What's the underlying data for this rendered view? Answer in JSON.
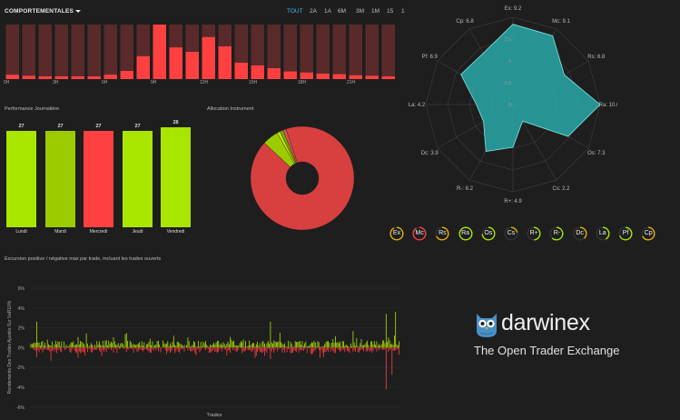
{
  "header": {
    "title": "COMPORTEMENTALES",
    "timeframes": [
      "TOUT",
      "2A",
      "1A",
      "6M",
      "3M",
      "1M",
      "15",
      "1"
    ],
    "active_timeframe": "TOUT"
  },
  "hourly": {
    "hour_labels": [
      "0H",
      "3H",
      "6H",
      "9H",
      "12H",
      "15H",
      "18H",
      "21H"
    ],
    "values": [
      0.08,
      0.06,
      0.04,
      0.03,
      0.02,
      0.04,
      0.08,
      0.15,
      0.42,
      1.0,
      0.58,
      0.5,
      0.77,
      0.6,
      0.3,
      0.25,
      0.2,
      0.14,
      0.12,
      0.1,
      0.09,
      0.07,
      0.06,
      0.05
    ],
    "colors": {
      "bar": "#ff4040",
      "track": "#5a2a2a"
    }
  },
  "daily": {
    "title": "Performance Journalière",
    "days": [
      {
        "label": "Lundi",
        "value": "27",
        "color": "#a8e600",
        "level": 0.96
      },
      {
        "label": "Mardi",
        "value": "27",
        "color": "#9ccc00",
        "level": 0.96
      },
      {
        "label": "Mercredi",
        "value": "27",
        "color": "#ff4040",
        "level": 0.96
      },
      {
        "label": "Jeudi",
        "value": "27",
        "color": "#a8e600",
        "level": 0.96
      },
      {
        "label": "Vendredi",
        "value": "28",
        "color": "#a8e600",
        "level": 1.0
      }
    ]
  },
  "allocation": {
    "title": "Allocation Instrument",
    "slices": [
      0.92,
      0.05,
      0.01,
      0.01,
      0.01
    ],
    "colors": [
      "#d84040",
      "#9ccc00",
      "#c8e000",
      "#6fb000",
      "#e05050"
    ]
  },
  "radar": {
    "axes": [
      "Ex: 9.2",
      "Mc: 9.1",
      "Rs: 6.8",
      "Ra: 10.0",
      "Os: 7.3",
      "Cs: 2.2",
      "R+: 4.9",
      "R-: 6.2",
      "Dc: 3.9",
      "La: 4.2",
      "Pf: 6.9",
      "Cp: 6.8"
    ],
    "values": [
      9.2,
      9.1,
      6.8,
      10.0,
      7.3,
      2.2,
      4.9,
      6.2,
      3.9,
      4.2,
      6.9,
      6.8
    ],
    "scale_labels": [
      "0",
      "2.5",
      "5",
      "7.5"
    ],
    "fill": "#2aa8a8"
  },
  "badges": [
    {
      "label": "Ex",
      "color": "#e8b000",
      "level": 0.92
    },
    {
      "label": "Mc",
      "color": "#ff4040",
      "level": 0.91
    },
    {
      "label": "Rs",
      "color": "#e8b000",
      "level": 0.68
    },
    {
      "label": "Ra",
      "color": "#a8e600",
      "level": 1.0
    },
    {
      "label": "Os",
      "color": "#a8e600",
      "level": 0.73
    },
    {
      "label": "Cs",
      "color": "#e8b000",
      "level": 0.22
    },
    {
      "label": "R+",
      "color": "#a8e600",
      "level": 0.49
    },
    {
      "label": "R-",
      "color": "#a8e600",
      "level": 0.62
    },
    {
      "label": "Dc",
      "color": "#e8b000",
      "level": 0.39
    },
    {
      "label": "La",
      "color": "#a8e600",
      "level": 0.42
    },
    {
      "label": "Pf",
      "color": "#a8e600",
      "level": 0.69
    },
    {
      "label": "Cp",
      "color": "#e8b000",
      "level": 0.68
    }
  ],
  "excursion": {
    "title": "Excursion positive / négative max par trade, incluant les trades ouverts",
    "ylabel": "Rendements Des Trades Ajustés Sur VaR10%",
    "xlabel": "Trades",
    "yticks": [
      "6%",
      "4%",
      "2%",
      "0%",
      "-2%",
      "-4%",
      "-6%"
    ],
    "colors": {
      "pos": "#a8e600",
      "neg": "#ff4040"
    }
  },
  "brand": {
    "name": "darwinex",
    "tagline": "The Open Trader Exchange"
  }
}
